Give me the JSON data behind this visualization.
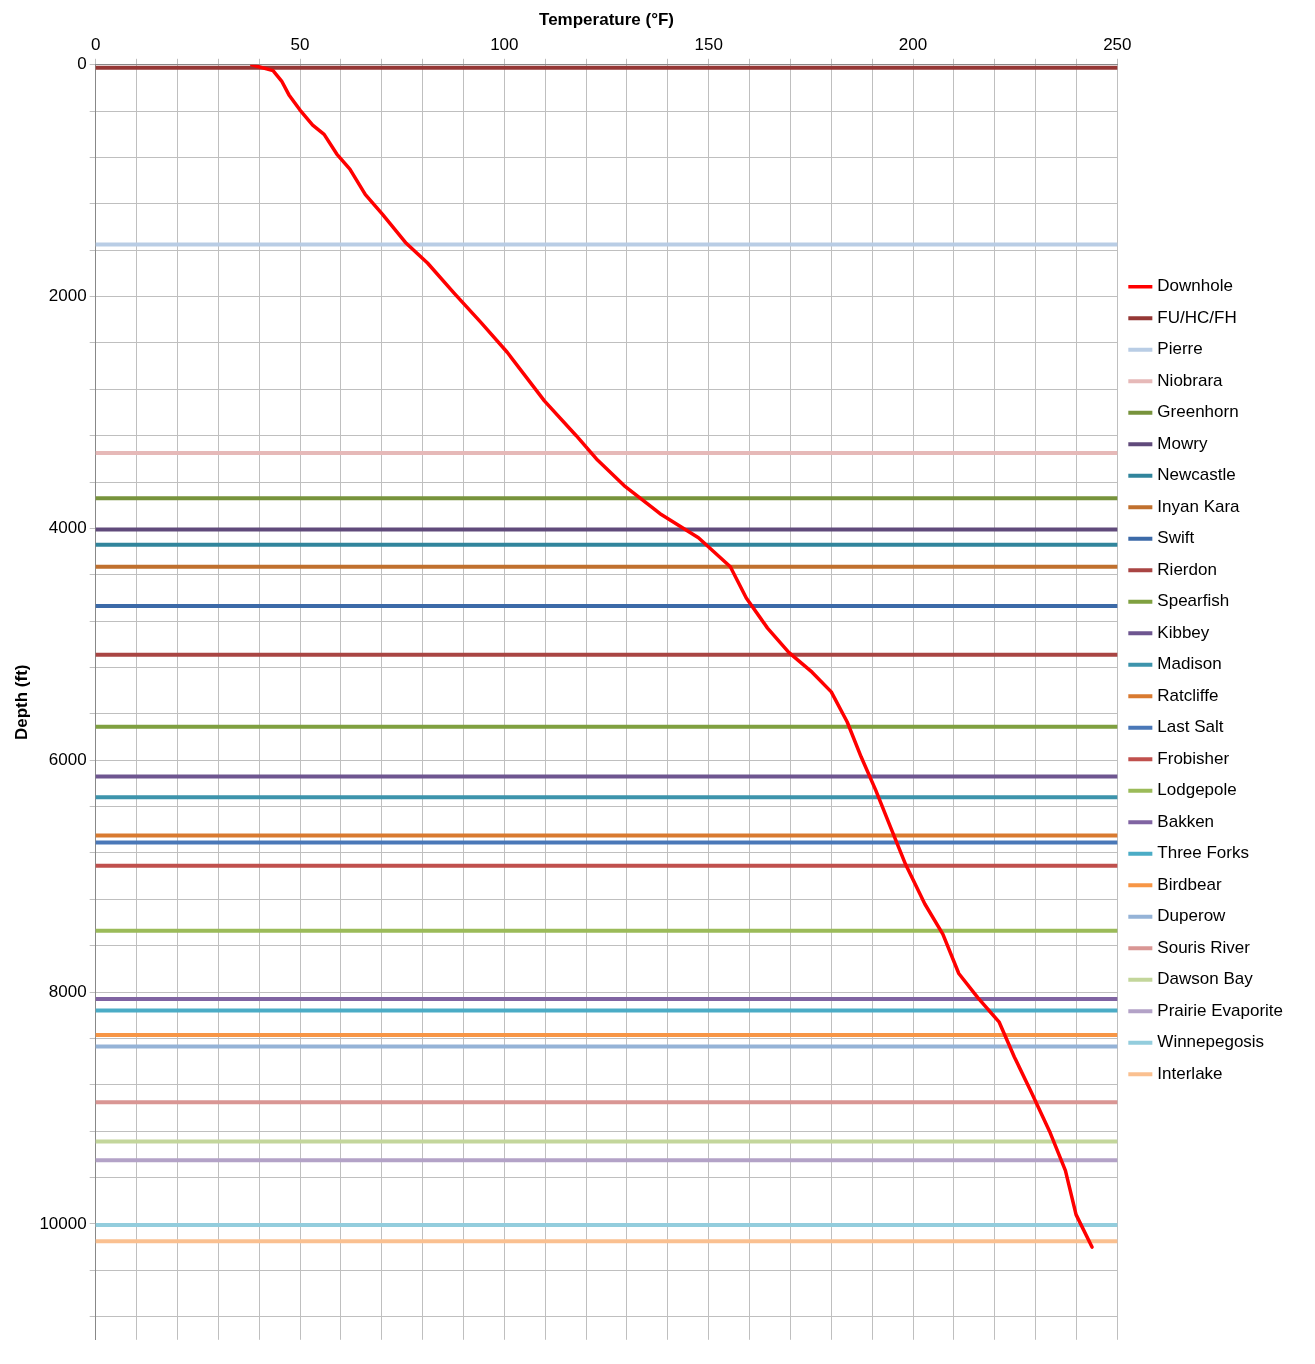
{
  "chart_data": {
    "type": "line",
    "xlabel": "Temperature (°F)",
    "ylabel": "Depth (ft)",
    "xlim": [
      0,
      250
    ],
    "ylim": [
      11000,
      0
    ],
    "xticks": [
      0,
      {
        "value": 10,
        "label": null
      },
      {
        "value": 20,
        "label": null
      },
      {
        "value": 30,
        "label": null
      },
      {
        "value": 40,
        "label": null
      },
      50,
      {
        "value": 60,
        "label": null
      },
      {
        "value": 70,
        "label": null
      },
      {
        "value": 80,
        "label": null
      },
      {
        "value": 90,
        "label": null
      },
      100,
      {
        "value": 110,
        "label": null
      },
      {
        "value": 120,
        "label": null
      },
      {
        "value": 130,
        "label": null
      },
      {
        "value": 140,
        "label": null
      },
      150,
      {
        "value": 160,
        "label": null
      },
      {
        "value": 170,
        "label": null
      },
      {
        "value": 180,
        "label": null
      },
      {
        "value": 190,
        "label": null
      },
      200,
      {
        "value": 210,
        "label": null
      },
      {
        "value": 220,
        "label": null
      },
      {
        "value": 230,
        "label": null
      },
      {
        "value": 240,
        "label": null
      },
      250
    ],
    "yticks": [
      0,
      {
        "value": 400,
        "label": null
      },
      {
        "value": 800,
        "label": null
      },
      {
        "value": 1200,
        "label": null
      },
      {
        "value": 1600,
        "label": null
      },
      2000,
      {
        "value": 2400,
        "label": null
      },
      {
        "value": 2800,
        "label": null
      },
      {
        "value": 3200,
        "label": null
      },
      {
        "value": 3600,
        "label": null
      },
      4000,
      {
        "value": 4400,
        "label": null
      },
      {
        "value": 4800,
        "label": null
      },
      {
        "value": 5200,
        "label": null
      },
      {
        "value": 5600,
        "label": null
      },
      6000,
      {
        "value": 6400,
        "label": null
      },
      {
        "value": 6800,
        "label": null
      },
      {
        "value": 7200,
        "label": null
      },
      {
        "value": 7600,
        "label": null
      },
      8000,
      {
        "value": 8400,
        "label": null
      },
      {
        "value": 8800,
        "label": null
      },
      {
        "value": 9200,
        "label": null
      },
      {
        "value": 9600,
        "label": null
      },
      10000,
      {
        "value": 10400,
        "label": null
      },
      {
        "value": 10800,
        "label": null
      }
    ],
    "grid": true,
    "legend": "right",
    "marker": "none",
    "line_style": "solid",
    "series": [
      {
        "name": "Downhole",
        "color": "#ff0000",
        "x": [
          38.2,
          43.4,
          45.5,
          47.3,
          50,
          53.1,
          55.9,
          59,
          62.2,
          66,
          70.2,
          76,
          81.2,
          87.7,
          94.2,
          100.7,
          109.8,
          117.6,
          122.8,
          129.3,
          138.4,
          147.5,
          155.3,
          159.2,
          164.4,
          169.6,
          175.3,
          180,
          183.9,
          187.3,
          190.9,
          194.3,
          198.2,
          202.9,
          207.3,
          211.2,
          215.9,
          221.1,
          224.8,
          228.9,
          233.4,
          237.3,
          239.9,
          243.8
        ],
        "values": [
          0,
          50,
          140,
          260,
          390,
          520,
          600,
          770,
          900,
          1120,
          1290,
          1540,
          1710,
          1970,
          2220,
          2480,
          2900,
          3200,
          3410,
          3630,
          3880,
          4080,
          4330,
          4600,
          4860,
          5070,
          5240,
          5410,
          5670,
          5970,
          6260,
          6560,
          6900,
          7240,
          7500,
          7840,
          8050,
          8260,
          8560,
          8860,
          9200,
          9540,
          9920,
          10200
        ]
      },
      {
        "name": "FU/HC/FH",
        "color": "#953735",
        "x": [
          0,
          250
        ],
        "values": [
          25,
          25
        ]
      },
      {
        "name": "Pierre",
        "color": "#b9cde5",
        "x": [
          0,
          250
        ],
        "values": [
          1550,
          1550
        ]
      },
      {
        "name": "Niobrara",
        "color": "#e6b9b8",
        "x": [
          0,
          250
        ],
        "values": [
          3350,
          3350
        ]
      },
      {
        "name": "Greenhorn",
        "color": "#77933c",
        "x": [
          0,
          250
        ],
        "values": [
          3740,
          3740
        ]
      },
      {
        "name": "Mowry",
        "color": "#604a7b",
        "x": [
          0,
          250
        ],
        "values": [
          4010,
          4010
        ]
      },
      {
        "name": "Newcastle",
        "color": "#31859c",
        "x": [
          0,
          250
        ],
        "values": [
          4140,
          4140
        ]
      },
      {
        "name": "Inyan Kara",
        "color": "#c0702e",
        "x": [
          0,
          250
        ],
        "values": [
          4330,
          4330
        ]
      },
      {
        "name": "Swift",
        "color": "#3c6aa8",
        "x": [
          0,
          250
        ],
        "values": [
          4670,
          4670
        ]
      },
      {
        "name": "Rierdon",
        "color": "#a94543",
        "x": [
          0,
          250
        ],
        "values": [
          5090,
          5090
        ]
      },
      {
        "name": "Spearfish",
        "color": "#7fa040",
        "x": [
          0,
          250
        ],
        "values": [
          5710,
          5710
        ]
      },
      {
        "name": "Kibbey",
        "color": "#6e5690",
        "x": [
          0,
          250
        ],
        "values": [
          6140,
          6140
        ]
      },
      {
        "name": "Madison",
        "color": "#3d94ac",
        "x": [
          0,
          250
        ],
        "values": [
          6320,
          6320
        ]
      },
      {
        "name": "Ratcliffe",
        "color": "#d97a30",
        "x": [
          0,
          250
        ],
        "values": [
          6650,
          6650
        ]
      },
      {
        "name": "Last Salt",
        "color": "#4a78b8",
        "x": [
          0,
          250
        ],
        "values": [
          6710,
          6710
        ]
      },
      {
        "name": "Frobisher",
        "color": "#c0504d",
        "x": [
          0,
          250
        ],
        "values": [
          6910,
          6910
        ]
      },
      {
        "name": "Lodgepole",
        "color": "#9bbb59",
        "x": [
          0,
          250
        ],
        "values": [
          7470,
          7470
        ]
      },
      {
        "name": "Bakken",
        "color": "#8064a2",
        "x": [
          0,
          250
        ],
        "values": [
          8060,
          8060
        ]
      },
      {
        "name": "Three Forks",
        "color": "#4bacc6",
        "x": [
          0,
          250
        ],
        "values": [
          8160,
          8160
        ]
      },
      {
        "name": "Birdbear",
        "color": "#f79646",
        "x": [
          0,
          250
        ],
        "values": [
          8370,
          8370
        ]
      },
      {
        "name": "Duperow",
        "color": "#95b3d7",
        "x": [
          0,
          250
        ],
        "values": [
          8470,
          8470
        ]
      },
      {
        "name": "Souris River",
        "color": "#d99694",
        "x": [
          0,
          250
        ],
        "values": [
          8950,
          8950
        ]
      },
      {
        "name": "Dawson Bay",
        "color": "#c3d69b",
        "x": [
          0,
          250
        ],
        "values": [
          9290,
          9290
        ]
      },
      {
        "name": "Prairie Evaporite",
        "color": "#b3a2c7",
        "x": [
          0,
          250
        ],
        "values": [
          9450,
          9450
        ]
      },
      {
        "name": "Winnepegosis",
        "color": "#93cddd",
        "x": [
          0,
          250
        ],
        "values": [
          10010,
          10010
        ]
      },
      {
        "name": "Interlake",
        "color": "#fac090",
        "x": [
          0,
          250
        ],
        "values": [
          10150,
          10150
        ]
      }
    ]
  }
}
